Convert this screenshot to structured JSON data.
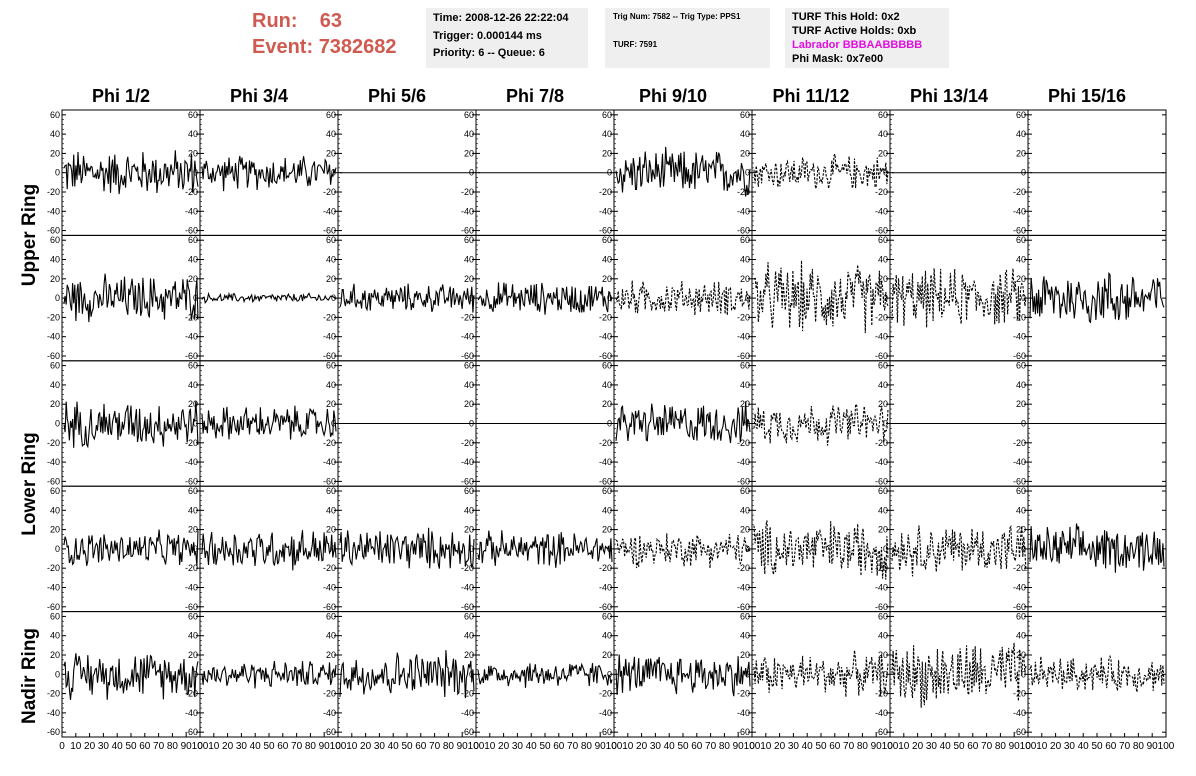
{
  "run_info": {
    "run_label": "Run:",
    "run_value": "63",
    "event_label": "Event:",
    "event_value": "7382682"
  },
  "time_box": {
    "time": "Time: 2008-12-26 22:22:04",
    "trigger": "Trigger: 0.000144 ms",
    "priority": "Priority: 6 -- Queue: 6"
  },
  "trig_box": {
    "trig": "Trig Num: 7582 -- Trig Type: PPS1",
    "turf": "TURF: 7591"
  },
  "turf_box": {
    "this_hold": "TURF This Hold: 0x2",
    "active_holds": "TURF Active Holds: 0xb",
    "labrador": "Labrador BBBAABBBBB",
    "phi_mask": "Phi Mask: 0x7e00"
  },
  "columns": [
    "Phi 1/2",
    "Phi 3/4",
    "Phi 5/6",
    "Phi 7/8",
    "Phi 9/10",
    "Phi 11/12",
    "Phi 13/14",
    "Phi 15/16"
  ],
  "ring_labels": [
    "Upper Ring",
    "Lower Ring",
    "Nadir Ring"
  ],
  "colors": {
    "run_text": "#d05a50",
    "labrador": "#e010e0",
    "box_bg": "#efefef"
  },
  "chart_data": {
    "type": "line",
    "rows": 5,
    "cols": 8,
    "ylim": [
      -65,
      65
    ],
    "xlim": [
      0,
      100
    ],
    "y_ticks": [
      -60,
      -40,
      -20,
      0,
      20,
      40,
      60
    ],
    "x_ticks": [
      0,
      10,
      20,
      30,
      40,
      50,
      60,
      70,
      80,
      90,
      100
    ],
    "x_tick_labels": [
      "0",
      "10",
      "20",
      "30",
      "40",
      "50",
      "60",
      "70",
      "80",
      "90",
      "100"
    ],
    "panels": [
      {
        "row": 0,
        "col": 0,
        "style": "solid",
        "amplitude": 20
      },
      {
        "row": 0,
        "col": 1,
        "style": "solid",
        "amplitude": 15
      },
      {
        "row": 0,
        "col": 2,
        "style": "flat",
        "amplitude": 0
      },
      {
        "row": 0,
        "col": 3,
        "style": "flat",
        "amplitude": 0
      },
      {
        "row": 0,
        "col": 4,
        "style": "solid",
        "amplitude": 20
      },
      {
        "row": 0,
        "col": 5,
        "style": "dashed",
        "amplitude": 15
      },
      {
        "row": 0,
        "col": 6,
        "style": "flat",
        "amplitude": 0
      },
      {
        "row": 0,
        "col": 7,
        "style": "flat",
        "amplitude": 0
      },
      {
        "row": 1,
        "col": 0,
        "style": "solid",
        "amplitude": 20
      },
      {
        "row": 1,
        "col": 1,
        "style": "solid",
        "amplitude": 4
      },
      {
        "row": 1,
        "col": 2,
        "style": "solid",
        "amplitude": 12
      },
      {
        "row": 1,
        "col": 3,
        "style": "solid",
        "amplitude": 14
      },
      {
        "row": 1,
        "col": 4,
        "style": "dashed",
        "amplitude": 15
      },
      {
        "row": 1,
        "col": 5,
        "style": "dashed",
        "amplitude": 30
      },
      {
        "row": 1,
        "col": 6,
        "style": "dashed",
        "amplitude": 25
      },
      {
        "row": 1,
        "col": 7,
        "style": "solid",
        "amplitude": 25
      },
      {
        "row": 2,
        "col": 0,
        "style": "solid",
        "amplitude": 20
      },
      {
        "row": 2,
        "col": 1,
        "style": "solid",
        "amplitude": 15
      },
      {
        "row": 2,
        "col": 2,
        "style": "flat",
        "amplitude": 0
      },
      {
        "row": 2,
        "col": 3,
        "style": "flat",
        "amplitude": 0
      },
      {
        "row": 2,
        "col": 4,
        "style": "solid",
        "amplitude": 18
      },
      {
        "row": 2,
        "col": 5,
        "style": "dashed",
        "amplitude": 18
      },
      {
        "row": 2,
        "col": 6,
        "style": "flat",
        "amplitude": 0
      },
      {
        "row": 2,
        "col": 7,
        "style": "flat",
        "amplitude": 0
      },
      {
        "row": 3,
        "col": 0,
        "style": "solid",
        "amplitude": 15
      },
      {
        "row": 3,
        "col": 1,
        "style": "solid",
        "amplitude": 18
      },
      {
        "row": 3,
        "col": 2,
        "style": "solid",
        "amplitude": 18
      },
      {
        "row": 3,
        "col": 3,
        "style": "solid",
        "amplitude": 15
      },
      {
        "row": 3,
        "col": 4,
        "style": "dashed",
        "amplitude": 15
      },
      {
        "row": 3,
        "col": 5,
        "style": "dashed",
        "amplitude": 25
      },
      {
        "row": 3,
        "col": 6,
        "style": "dashed",
        "amplitude": 22
      },
      {
        "row": 3,
        "col": 7,
        "style": "solid",
        "amplitude": 20
      },
      {
        "row": 4,
        "col": 0,
        "style": "solid",
        "amplitude": 20
      },
      {
        "row": 4,
        "col": 1,
        "style": "solid",
        "amplitude": 12
      },
      {
        "row": 4,
        "col": 2,
        "style": "solid",
        "amplitude": 20
      },
      {
        "row": 4,
        "col": 3,
        "style": "solid",
        "amplitude": 12
      },
      {
        "row": 4,
        "col": 4,
        "style": "solid",
        "amplitude": 18
      },
      {
        "row": 4,
        "col": 5,
        "style": "dashed",
        "amplitude": 18
      },
      {
        "row": 4,
        "col": 6,
        "style": "dashed",
        "amplitude": 28
      },
      {
        "row": 4,
        "col": 7,
        "style": "dashed",
        "amplitude": 15
      }
    ]
  }
}
